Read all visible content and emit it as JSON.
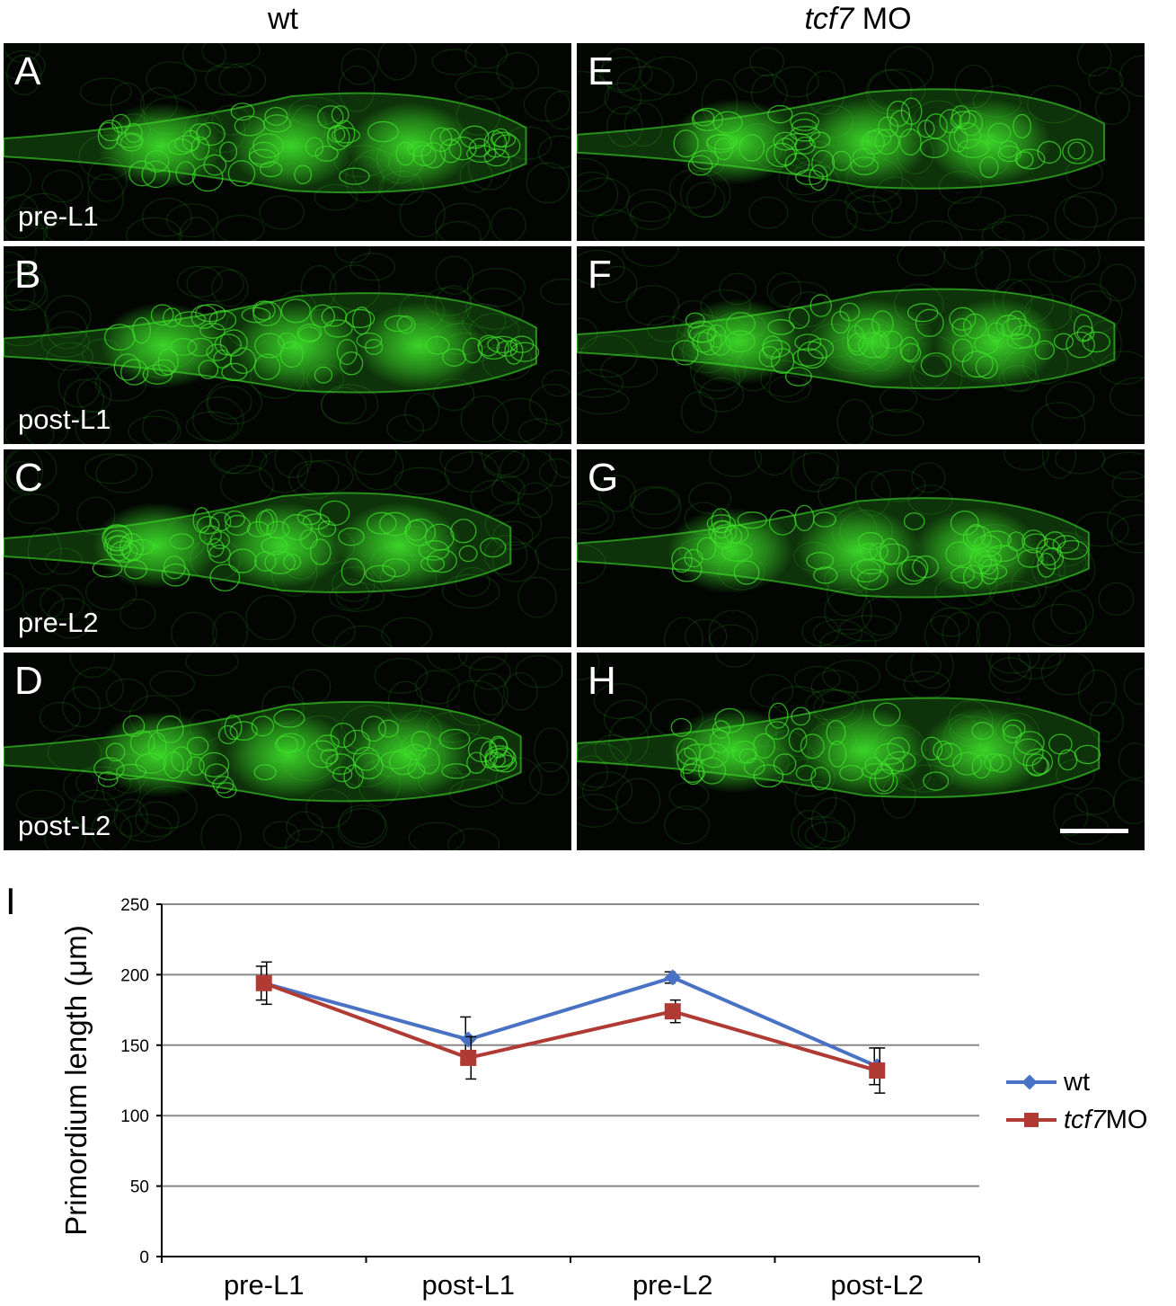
{
  "columns": [
    {
      "id": "wt",
      "title": "wt",
      "title_italic": ""
    },
    {
      "id": "tcf7",
      "title": " MO",
      "title_italic": "tcf7"
    }
  ],
  "panels": [
    {
      "letter": "A",
      "label": "pre-L1"
    },
    {
      "letter": "B",
      "label": "post-L1"
    },
    {
      "letter": "C",
      "label": "pre-L2"
    },
    {
      "letter": "D",
      "label": "post-L2"
    },
    {
      "letter": "E",
      "label": ""
    },
    {
      "letter": "F",
      "label": ""
    },
    {
      "letter": "G",
      "label": ""
    },
    {
      "letter": "H",
      "label": ""
    }
  ],
  "colors": {
    "panel_bg": "#020502",
    "fluorescence": "#3ddc2a",
    "wt": "#4a72c4",
    "tcf7": "#b03a34",
    "grid": "#888888"
  },
  "chart_letter": "I",
  "chart_data": {
    "type": "line",
    "categories": [
      "pre-L1",
      "post-L1",
      "pre-L2",
      "post-L2"
    ],
    "ylabel": "Primordium length (μm)",
    "xlabel": "",
    "ylim": [
      0,
      250
    ],
    "yticks": [
      0,
      50,
      100,
      150,
      200,
      250
    ],
    "grid": true,
    "legend_position": "right",
    "series": [
      {
        "name": "wt",
        "name_italic": "",
        "marker": "diamond",
        "color": "#4a72c4",
        "values": [
          194,
          154,
          198,
          135
        ],
        "errors": [
          12,
          16,
          4,
          13
        ]
      },
      {
        "name": " MO",
        "name_italic": "tcf7",
        "marker": "square",
        "color": "#b03a34",
        "values": [
          194,
          141,
          174,
          132
        ],
        "errors": [
          15,
          15,
          8,
          16
        ]
      }
    ]
  }
}
